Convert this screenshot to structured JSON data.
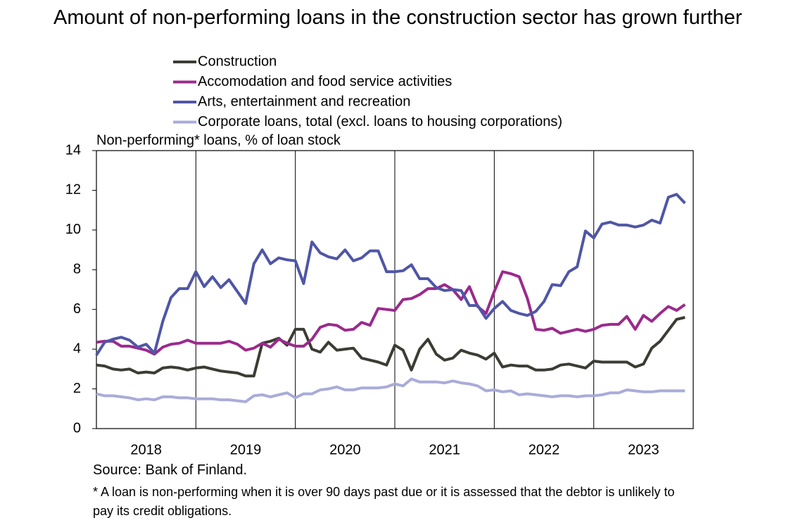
{
  "chart_data": {
    "type": "line",
    "title": "Amount of non-performing loans in the construction sector has grown further",
    "ylabel": "Non-performing* loans, % of loan stock",
    "source": "Source: Bank of Finland.",
    "footnote": "* A loan is non-performing when it is over 90 days past due or it is assessed that the debtor is unlikely to pay its credit obligations.",
    "x": [
      2018,
      2018.083,
      2018.167,
      2018.25,
      2018.333,
      2018.417,
      2018.5,
      2018.583,
      2018.667,
      2018.75,
      2018.833,
      2018.917,
      2019,
      2019.083,
      2019.167,
      2019.25,
      2019.333,
      2019.417,
      2019.5,
      2019.583,
      2019.667,
      2019.75,
      2019.833,
      2019.917,
      2020,
      2020.083,
      2020.167,
      2020.25,
      2020.333,
      2020.417,
      2020.5,
      2020.583,
      2020.667,
      2020.75,
      2020.833,
      2020.917,
      2021,
      2021.083,
      2021.167,
      2021.25,
      2021.333,
      2021.417,
      2021.5,
      2021.583,
      2021.667,
      2021.75,
      2021.833,
      2021.917,
      2022,
      2022.083,
      2022.167,
      2022.25,
      2022.333,
      2022.417,
      2022.5,
      2022.583,
      2022.667,
      2022.75,
      2022.833,
      2022.917,
      2023,
      2023.083,
      2023.167,
      2023.25,
      2023.333,
      2023.417,
      2023.5,
      2023.583,
      2023.667,
      2023.75,
      2023.833,
      2023.917
    ],
    "xlim": [
      2018,
      2024
    ],
    "xticks": [
      2018,
      2019,
      2020,
      2021,
      2022,
      2023
    ],
    "ylim": [
      0,
      14
    ],
    "yticks": [
      0,
      2,
      4,
      6,
      8,
      10,
      12,
      14
    ],
    "series": [
      {
        "name": "Construction",
        "color": "#3b3c33",
        "values": [
          3.2,
          3.15,
          3.0,
          2.95,
          3.0,
          2.8,
          2.85,
          2.8,
          3.05,
          3.1,
          3.05,
          2.95,
          3.05,
          3.1,
          3.0,
          2.9,
          2.85,
          2.8,
          2.65,
          2.65,
          4.3,
          4.4,
          4.55,
          4.2,
          5.0,
          5.0,
          4.0,
          3.85,
          4.35,
          3.95,
          4.0,
          4.05,
          3.55,
          3.45,
          3.35,
          3.2,
          4.2,
          3.95,
          2.95,
          4.0,
          4.5,
          3.75,
          3.45,
          3.55,
          3.95,
          3.8,
          3.7,
          3.5,
          3.8,
          3.1,
          3.2,
          3.15,
          3.15,
          2.95,
          2.95,
          3.0,
          3.2,
          3.25,
          3.15,
          3.05,
          3.4,
          3.35,
          3.35,
          3.35,
          3.35,
          3.1,
          3.25,
          4.05,
          4.4,
          4.95,
          5.5,
          5.6
        ]
      },
      {
        "name": "Accomodation and food service activities",
        "color": "#9b2a8c",
        "values": [
          4.35,
          4.4,
          4.4,
          4.15,
          4.15,
          4.05,
          3.95,
          3.75,
          4.1,
          4.25,
          4.3,
          4.45,
          4.3,
          4.3,
          4.3,
          4.3,
          4.4,
          4.25,
          3.95,
          4.05,
          4.3,
          4.1,
          4.5,
          4.3,
          4.15,
          4.15,
          4.5,
          5.1,
          5.25,
          5.2,
          4.95,
          5.0,
          5.35,
          5.2,
          6.05,
          6.0,
          5.95,
          6.5,
          6.55,
          6.75,
          7.05,
          7.05,
          7.25,
          7.0,
          6.5,
          7.15,
          6.15,
          5.8,
          6.9,
          7.9,
          7.8,
          7.65,
          6.55,
          5.0,
          4.95,
          5.05,
          4.8,
          4.9,
          5.0,
          4.9,
          5.0,
          5.2,
          5.25,
          5.25,
          5.65,
          5.0,
          5.7,
          5.4,
          5.8,
          6.15,
          5.95,
          6.25
        ]
      },
      {
        "name": "Arts, entertainment and recreation",
        "color": "#4f56a6",
        "values": [
          3.7,
          4.35,
          4.5,
          4.6,
          4.45,
          4.1,
          4.25,
          3.8,
          5.4,
          6.6,
          7.05,
          7.05,
          7.9,
          7.15,
          7.65,
          7.1,
          7.5,
          6.9,
          6.3,
          8.3,
          9.0,
          8.3,
          8.6,
          8.5,
          8.45,
          7.3,
          9.4,
          8.85,
          8.65,
          8.55,
          9.0,
          8.45,
          8.6,
          8.95,
          8.95,
          7.9,
          7.9,
          7.95,
          8.25,
          7.55,
          7.55,
          7.1,
          6.95,
          7.0,
          6.95,
          6.2,
          6.2,
          5.55,
          6.05,
          6.4,
          5.95,
          5.8,
          5.7,
          5.9,
          6.4,
          7.25,
          7.2,
          7.9,
          8.15,
          9.95,
          9.6,
          10.3,
          10.4,
          10.25,
          10.25,
          10.15,
          10.25,
          10.5,
          10.35,
          11.65,
          11.8,
          11.35
        ]
      },
      {
        "name": "Corporate loans, total (excl. loans to housing corporations)",
        "color": "#a9acd9",
        "values": [
          1.75,
          1.65,
          1.65,
          1.6,
          1.55,
          1.45,
          1.5,
          1.45,
          1.6,
          1.6,
          1.55,
          1.55,
          1.5,
          1.5,
          1.5,
          1.45,
          1.45,
          1.4,
          1.35,
          1.65,
          1.7,
          1.6,
          1.7,
          1.8,
          1.55,
          1.75,
          1.75,
          1.95,
          2.0,
          2.1,
          1.95,
          1.95,
          2.05,
          2.05,
          2.05,
          2.1,
          2.25,
          2.15,
          2.5,
          2.35,
          2.35,
          2.35,
          2.3,
          2.4,
          2.3,
          2.25,
          2.15,
          1.9,
          1.95,
          1.85,
          1.9,
          1.7,
          1.75,
          1.7,
          1.65,
          1.6,
          1.65,
          1.65,
          1.6,
          1.65,
          1.65,
          1.7,
          1.8,
          1.8,
          1.95,
          1.9,
          1.85,
          1.85,
          1.9,
          1.9,
          1.9,
          1.9
        ]
      }
    ],
    "grid": true
  }
}
